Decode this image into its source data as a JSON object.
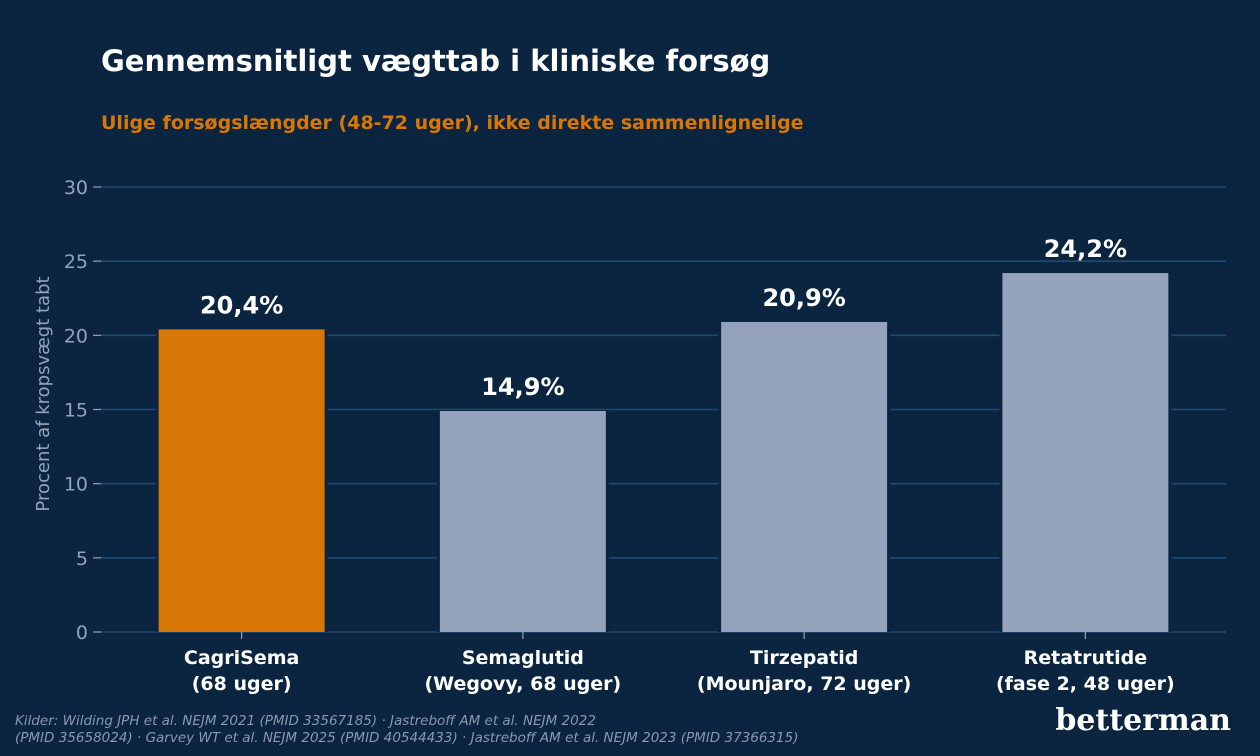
{
  "chart_data": {
    "type": "bar",
    "title": "Gennemsnitligt vægttab i kliniske forsøg",
    "subtitle": "Ulige forsøgslængder (48-72 uger), ikke direkte sammenlignelige",
    "ylabel": "Procent af kropsvægt tabt",
    "xlabel": "",
    "ylim": [
      0,
      30
    ],
    "yticks": [
      0,
      5,
      10,
      15,
      20,
      25,
      30
    ],
    "grid": true,
    "categories": [
      [
        "CagriSema",
        "(68 uger)"
      ],
      [
        "Semaglutid",
        "(Wegovy, 68 uger)"
      ],
      [
        "Tirzepatid",
        "(Mounjaro, 72 uger)"
      ],
      [
        "Retatrutide",
        "(fase 2, 48 uger)"
      ]
    ],
    "values": [
      20.4,
      14.9,
      20.9,
      24.2
    ],
    "data_labels": [
      "20,4%",
      "14,9%",
      "20,9%",
      "24,2%"
    ],
    "bar_colors": [
      "#d97706",
      "#94a3bb",
      "#94a3bb",
      "#94a3bb"
    ],
    "highlight_index": 0
  },
  "colors": {
    "background": "#0b2541",
    "accent": "#d97706",
    "bar_muted": "#94a3bb",
    "grid": "#1f4a75",
    "axis_text": "#94a3b8",
    "source_text": "#8a98ad"
  },
  "source": {
    "lines": [
      "Kilder: Wilding JPH et al. NEJM 2021 (PMID 33567185) · Jastreboff AM et al. NEJM 2022",
      "(PMID 35658024) · Garvey WT et al. NEJM 2025 (PMID 40544433) · Jastreboff AM et al. NEJM 2023 (PMID 37366315)"
    ]
  },
  "brand": {
    "name": "betterman"
  }
}
